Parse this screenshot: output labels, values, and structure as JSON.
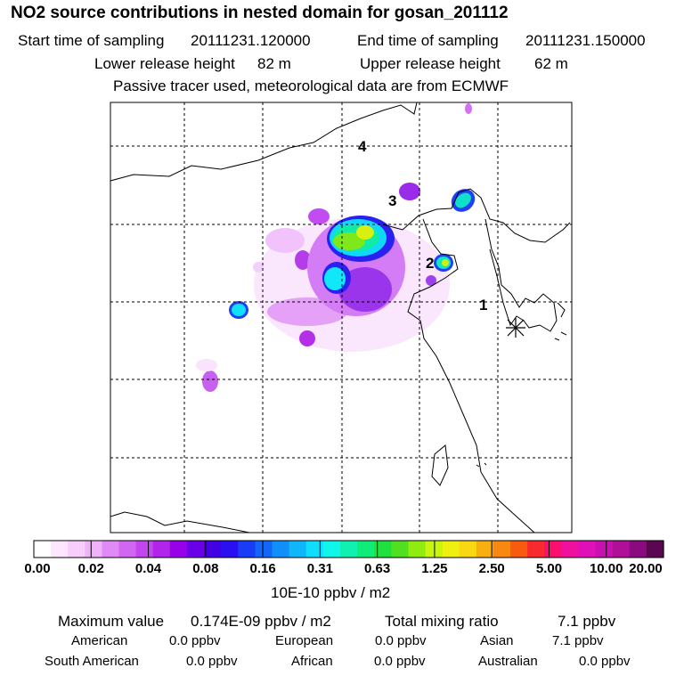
{
  "header": {
    "title": "NO2 source contributions in nested domain for gosan_201112",
    "start_label": "Start time of sampling",
    "start_value": "20111231.120000",
    "end_label": "End time of sampling",
    "end_value": "20111231.150000",
    "lower_label": "Lower release height",
    "lower_value": "82 m",
    "upper_label": "Upper release height",
    "upper_value": "62 m",
    "note": "Passive tracer used, meteorological data are from ECMWF"
  },
  "map": {
    "markers": [
      "1",
      "2",
      "3",
      "4"
    ],
    "receptor_symbol": "star-receptor-icon"
  },
  "colorbar": {
    "labels": [
      "0.00",
      "0.02",
      "0.04",
      "0.08",
      "0.16",
      "0.31",
      "0.63",
      "1.25",
      "2.50",
      "5.00",
      "10.00",
      "20.00"
    ],
    "unit": "10E-10 ppbv / m2",
    "colors": [
      "#ffffff",
      "#fde6fe",
      "#f8cdfc",
      "#f0b3fa",
      "#e08af5",
      "#d166f2",
      "#c245ef",
      "#b024ec",
      "#9900ea",
      "#6a00e8",
      "#4400e5",
      "#2a10f0",
      "#1b3cf5",
      "#1466f7",
      "#108ff8",
      "#10b6fa",
      "#10dcfb",
      "#10f6e8",
      "#10f0b0",
      "#10ec7a",
      "#20e040",
      "#50e020",
      "#90ec10",
      "#c8f410",
      "#f0f010",
      "#f8d810",
      "#f8b010",
      "#f88810",
      "#f85a10",
      "#f82a30",
      "#f8106c",
      "#f010a0",
      "#e010b8",
      "#c810b0",
      "#b01098",
      "#8a0a80",
      "#5a0650"
    ]
  },
  "stats": {
    "max_label": "Maximum value",
    "max_value": "0.174E-09 ppbv / m2",
    "total_label": "Total mixing ratio",
    "total_value": "7.1 ppbv",
    "regions": [
      {
        "name": "American",
        "value": "0.0 ppbv"
      },
      {
        "name": "European",
        "value": "0.0 ppbv"
      },
      {
        "name": "Asian",
        "value": "7.1 ppbv"
      },
      {
        "name": "South American",
        "value": "0.0 ppbv"
      },
      {
        "name": "African",
        "value": "0.0 ppbv"
      },
      {
        "name": "Australian",
        "value": "0.0 ppbv"
      }
    ]
  }
}
